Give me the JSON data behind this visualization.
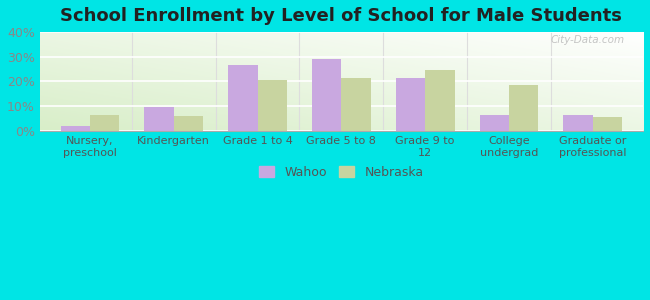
{
  "title": "School Enrollment by Level of School for Male Students",
  "categories": [
    "Nursery,\npreschool",
    "Kindergarten",
    "Grade 1 to 4",
    "Grade 5 to 8",
    "Grade 9 to\n12",
    "College\nundergrad",
    "Graduate or\nprofessional"
  ],
  "wahoo_values": [
    2.0,
    9.5,
    26.5,
    29.0,
    21.5,
    6.5,
    6.5
  ],
  "nebraska_values": [
    6.5,
    6.0,
    20.5,
    21.5,
    24.5,
    18.5,
    5.5
  ],
  "wahoo_color": "#c9a8e0",
  "nebraska_color": "#c8d4a0",
  "background_outer": "#00e5e5",
  "ylim": [
    0,
    40
  ],
  "yticks": [
    0,
    10,
    20,
    30,
    40
  ],
  "bar_width": 0.35,
  "title_fontsize": 13,
  "legend_labels": [
    "Wahoo",
    "Nebraska"
  ],
  "watermark": "City-Data.com"
}
